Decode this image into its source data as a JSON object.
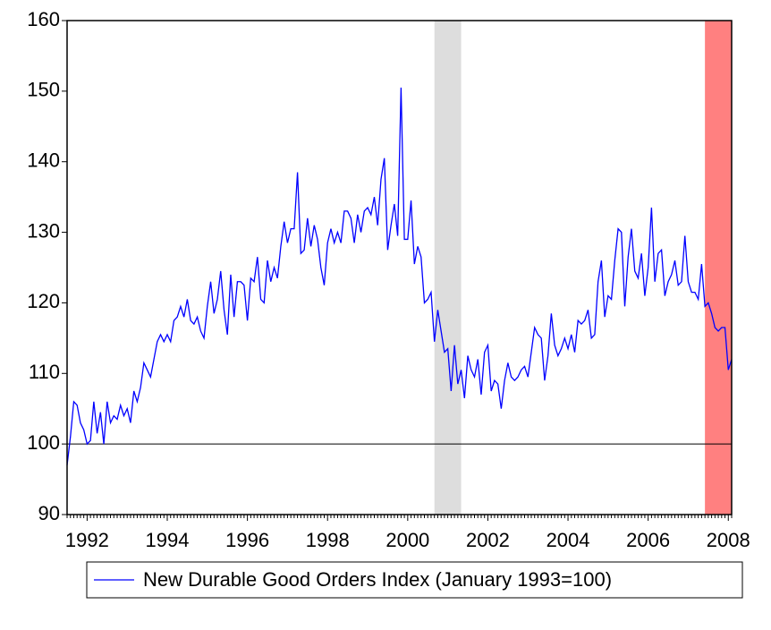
{
  "chart_data": {
    "type": "line",
    "categories": [
      null,
      null,
      null,
      null,
      null,
      null,
      "1992",
      null,
      null,
      null,
      null,
      null,
      null,
      null,
      null,
      null,
      null,
      null,
      null,
      null,
      null,
      null,
      null,
      null,
      null,
      null,
      null,
      null,
      null,
      null,
      "1994",
      null,
      null,
      null,
      null,
      null,
      null,
      null,
      null,
      null,
      null,
      null,
      null,
      null,
      null,
      null,
      null,
      null,
      null,
      null,
      null,
      null,
      null,
      null,
      "1996",
      null,
      null,
      null,
      null,
      null,
      null,
      null,
      null,
      null,
      null,
      null,
      null,
      null,
      null,
      null,
      null,
      null,
      null,
      null,
      null,
      null,
      null,
      null,
      "1998",
      null,
      null,
      null,
      null,
      null,
      null,
      null,
      null,
      null,
      null,
      null,
      null,
      null,
      null,
      null,
      null,
      null,
      null,
      null,
      null,
      null,
      null,
      null,
      "2000",
      null,
      null,
      null,
      null,
      null,
      null,
      null,
      null,
      null,
      null,
      null,
      null,
      null,
      null,
      null,
      null,
      null,
      null,
      null,
      null,
      null,
      null,
      null,
      "2002",
      null,
      null,
      null,
      null,
      null,
      null,
      null,
      null,
      null,
      null,
      null,
      null,
      null,
      null,
      null,
      null,
      null,
      null,
      null,
      null,
      null,
      null,
      null,
      "2004",
      null,
      null,
      null,
      null,
      null,
      null,
      null,
      null,
      null,
      null,
      null,
      null,
      null,
      null,
      null,
      null,
      null,
      null,
      null,
      null,
      null,
      null,
      null,
      "2006",
      null,
      null,
      null,
      null,
      null,
      null,
      null,
      null,
      null,
      null,
      null,
      null,
      null,
      null,
      null,
      null,
      null,
      null,
      null,
      null,
      null,
      null,
      null,
      "2008",
      null
    ],
    "series": [
      {
        "name": "New Durable Good Orders Index (January 1993=100)",
        "color": "#0000ff",
        "values": [
          97,
          101,
          106,
          105.5,
          103,
          102,
          100,
          100.5,
          106,
          101.5,
          104.5,
          100,
          106,
          103,
          104,
          103.5,
          105.5,
          104,
          105,
          103,
          107.5,
          106,
          108,
          111.5,
          110.5,
          109.5,
          112,
          114.5,
          115.5,
          114.5,
          115.5,
          114.5,
          117.5,
          118,
          119.5,
          118,
          120.5,
          117.5,
          117,
          118,
          116,
          115,
          119.5,
          123,
          118.5,
          120.5,
          124.5,
          119,
          115.5,
          124,
          118,
          123,
          123,
          122.5,
          117.5,
          123.5,
          123,
          126.5,
          120.5,
          120,
          126,
          123,
          125,
          123.5,
          128,
          131.5,
          128.5,
          130.5,
          130.5,
          138.5,
          127,
          127.5,
          132,
          128,
          131,
          129,
          125,
          122.5,
          128.5,
          130.5,
          128.5,
          130,
          128.5,
          133,
          133,
          132,
          128.5,
          132.5,
          130,
          133,
          133.5,
          132.5,
          135,
          131,
          137.5,
          140.5,
          127.5,
          131,
          134,
          129.5,
          150.5,
          129,
          129,
          134.5,
          125.5,
          128,
          126.5,
          120,
          120.5,
          121.5,
          114.5,
          119,
          116,
          113,
          113.5,
          107.5,
          114,
          108.5,
          110.5,
          106.5,
          112.5,
          110.5,
          109.5,
          112,
          107,
          113,
          114,
          107.5,
          109,
          108.5,
          105,
          109,
          111.5,
          109.5,
          109,
          109.5,
          110.5,
          111,
          109.5,
          113,
          116.5,
          115.5,
          115,
          109,
          112.5,
          118.5,
          114,
          112.5,
          113.5,
          115,
          113.5,
          115.5,
          113,
          117.5,
          117,
          117.5,
          119,
          115,
          115.5,
          123,
          126,
          118,
          121,
          120.5,
          126,
          130.5,
          130,
          119.5,
          126.5,
          130.5,
          124.5,
          123.5,
          127,
          121,
          125,
          133.5,
          123,
          127,
          127.5,
          121,
          123,
          124,
          126,
          122.5,
          123,
          129.5,
          123,
          121.5,
          121.5,
          120.5,
          125.5,
          119.5,
          120,
          118.5,
          116.5,
          116,
          116.5,
          116.5,
          110.5,
          112
        ]
      }
    ],
    "shaded": [
      {
        "start": 110,
        "end": 118,
        "color": "#dddddd"
      },
      {
        "start": 191,
        "end": 199,
        "color": "#ff8080"
      }
    ],
    "reference_line": 100,
    "ylim": [
      90,
      160
    ],
    "yticks": [
      90,
      100,
      110,
      120,
      130,
      140,
      150,
      160
    ],
    "legend": "bottom"
  }
}
